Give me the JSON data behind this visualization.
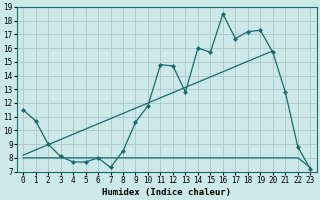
{
  "xlabel": "Humidex (Indice chaleur)",
  "bg_color": "#cce8e8",
  "line_color": "#1a6b6b",
  "grid_color": "#b0cccc",
  "xlim": [
    -0.5,
    23.5
  ],
  "ylim": [
    7,
    19
  ],
  "xticks": [
    0,
    1,
    2,
    3,
    4,
    5,
    6,
    7,
    8,
    9,
    10,
    11,
    12,
    13,
    14,
    15,
    16,
    17,
    18,
    19,
    20,
    21,
    22,
    23
  ],
  "yticks": [
    7,
    8,
    9,
    10,
    11,
    12,
    13,
    14,
    15,
    16,
    17,
    18,
    19
  ],
  "line1_x": [
    0,
    1,
    2,
    3,
    4,
    5,
    6,
    7,
    8,
    9,
    10,
    11,
    12,
    13,
    14,
    15,
    16,
    17,
    18,
    19,
    20,
    21,
    22,
    23
  ],
  "line1_y": [
    11.5,
    10.7,
    9.0,
    8.1,
    7.7,
    7.7,
    8.0,
    7.3,
    8.5,
    10.6,
    11.8,
    14.8,
    14.7,
    12.8,
    16.0,
    15.7,
    18.5,
    16.7,
    17.2,
    17.3,
    15.7,
    12.8,
    8.8,
    7.2
  ],
  "line2_x": [
    0,
    20
  ],
  "line2_y": [
    8.2,
    15.8
  ],
  "line3_x": [
    0,
    22,
    23
  ],
  "line3_y": [
    8.0,
    8.0,
    7.3
  ],
  "xlabel_fontsize": 6.5,
  "tick_fontsize": 5.5
}
